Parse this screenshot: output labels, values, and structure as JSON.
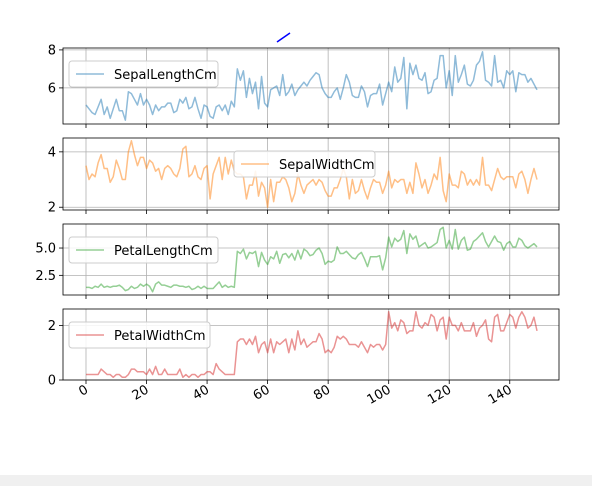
{
  "window": {
    "background": "#f0f0f0"
  },
  "chart_data": {
    "type": "line",
    "x_range": [
      0,
      149
    ],
    "x_ticks": [
      "0",
      "20",
      "40",
      "60",
      "80",
      "100",
      "120",
      "140"
    ],
    "grid": true,
    "alpha": 0.5,
    "series": [
      {
        "name": "SepalLengthCm",
        "color": "#1f77b4",
        "ylim": [
          4.1,
          8.1
        ],
        "y_ticks": [
          "6",
          "8"
        ],
        "legend_position": "upper left",
        "values": [
          5.1,
          4.9,
          4.7,
          4.6,
          5.0,
          5.4,
          4.6,
          5.0,
          4.4,
          4.9,
          5.4,
          4.8,
          4.8,
          4.3,
          5.8,
          5.7,
          5.4,
          5.1,
          5.7,
          5.1,
          5.4,
          5.1,
          4.6,
          5.1,
          4.8,
          5.0,
          5.0,
          5.2,
          5.2,
          4.7,
          4.8,
          5.4,
          5.2,
          5.5,
          4.9,
          5.0,
          5.5,
          4.9,
          4.4,
          5.1,
          5.0,
          4.5,
          4.4,
          5.0,
          5.1,
          4.8,
          5.1,
          4.6,
          5.3,
          5.0,
          7.0,
          6.4,
          6.9,
          5.5,
          6.5,
          5.7,
          6.3,
          4.9,
          6.6,
          5.2,
          5.0,
          5.9,
          6.0,
          6.1,
          5.6,
          6.7,
          5.6,
          5.8,
          6.2,
          5.6,
          5.9,
          6.1,
          6.3,
          6.1,
          6.4,
          6.6,
          6.8,
          6.7,
          6.0,
          5.7,
          5.5,
          5.5,
          5.8,
          6.0,
          5.4,
          6.0,
          6.7,
          6.3,
          5.6,
          5.5,
          5.5,
          6.1,
          5.8,
          5.0,
          5.6,
          5.7,
          5.7,
          6.2,
          5.1,
          5.7,
          6.3,
          5.8,
          7.1,
          6.3,
          6.5,
          7.6,
          4.9,
          7.3,
          6.7,
          7.2,
          6.5,
          6.4,
          6.8,
          5.7,
          5.8,
          6.4,
          6.5,
          7.7,
          7.7,
          6.0,
          6.9,
          5.6,
          7.7,
          6.3,
          6.7,
          7.2,
          6.2,
          6.1,
          6.4,
          7.2,
          7.4,
          7.9,
          6.4,
          6.3,
          6.1,
          7.7,
          6.3,
          6.4,
          6.0,
          6.9,
          6.7,
          6.9,
          5.8,
          6.8,
          6.7,
          6.7,
          6.3,
          6.5,
          6.2,
          5.9
        ]
      },
      {
        "name": "SepalWidthCm",
        "color": "#ff7f0e",
        "ylim": [
          1.9,
          4.5
        ],
        "y_ticks": [
          "2",
          "4"
        ],
        "legend_position": "upper center",
        "values": [
          3.5,
          3.0,
          3.2,
          3.1,
          3.6,
          3.9,
          3.4,
          3.4,
          2.9,
          3.1,
          3.7,
          3.4,
          3.0,
          3.0,
          4.0,
          4.4,
          3.9,
          3.5,
          3.8,
          3.8,
          3.4,
          3.7,
          3.6,
          3.3,
          3.4,
          3.0,
          3.4,
          3.5,
          3.4,
          3.2,
          3.1,
          3.4,
          4.1,
          4.2,
          3.1,
          3.2,
          3.5,
          3.1,
          3.0,
          3.4,
          3.5,
          2.3,
          3.2,
          3.5,
          3.8,
          3.0,
          3.8,
          3.2,
          3.7,
          3.3,
          3.2,
          3.2,
          3.1,
          2.3,
          2.8,
          2.8,
          3.3,
          2.4,
          2.9,
          2.7,
          2.0,
          3.0,
          2.2,
          2.9,
          2.9,
          3.1,
          3.0,
          2.7,
          2.2,
          2.5,
          3.2,
          2.8,
          2.5,
          2.8,
          2.9,
          3.0,
          2.8,
          3.0,
          2.9,
          2.6,
          2.4,
          2.4,
          2.7,
          2.7,
          3.0,
          3.4,
          3.1,
          2.3,
          3.0,
          2.5,
          2.6,
          3.0,
          2.6,
          2.3,
          2.7,
          3.0,
          2.9,
          2.9,
          2.5,
          2.8,
          3.3,
          2.7,
          3.0,
          2.9,
          3.0,
          3.0,
          2.5,
          2.9,
          2.5,
          3.6,
          3.2,
          2.7,
          3.0,
          2.5,
          2.8,
          3.2,
          3.0,
          3.8,
          2.6,
          2.2,
          3.2,
          2.8,
          2.8,
          2.7,
          3.3,
          3.2,
          2.8,
          3.0,
          2.8,
          3.0,
          2.8,
          3.8,
          2.8,
          2.8,
          2.6,
          3.0,
          3.4,
          3.1,
          3.0,
          3.1,
          3.1,
          3.1,
          2.7,
          3.2,
          3.3,
          3.0,
          2.5,
          3.0,
          3.4,
          3.0
        ]
      },
      {
        "name": "PetalLengthCm",
        "color": "#2ca02c",
        "ylim": [
          0.7,
          7.2
        ],
        "y_ticks": [
          "2.5",
          "5.0"
        ],
        "legend_position": "upper left",
        "values": [
          1.4,
          1.4,
          1.3,
          1.5,
          1.4,
          1.7,
          1.4,
          1.5,
          1.4,
          1.5,
          1.5,
          1.6,
          1.4,
          1.1,
          1.2,
          1.5,
          1.3,
          1.4,
          1.7,
          1.5,
          1.7,
          1.5,
          1.0,
          1.7,
          1.9,
          1.6,
          1.6,
          1.5,
          1.4,
          1.6,
          1.6,
          1.5,
          1.5,
          1.4,
          1.5,
          1.2,
          1.3,
          1.5,
          1.3,
          1.5,
          1.3,
          1.3,
          1.3,
          1.6,
          1.9,
          1.4,
          1.6,
          1.4,
          1.5,
          1.4,
          4.7,
          4.5,
          4.9,
          4.0,
          4.6,
          4.5,
          4.7,
          3.3,
          4.6,
          3.9,
          3.5,
          4.2,
          4.0,
          4.7,
          3.6,
          4.4,
          4.5,
          4.1,
          4.5,
          3.9,
          4.8,
          4.0,
          4.9,
          4.7,
          4.3,
          4.4,
          4.8,
          5.0,
          4.5,
          3.5,
          3.8,
          3.7,
          3.9,
          5.1,
          4.5,
          4.5,
          4.7,
          4.4,
          4.1,
          4.0,
          4.4,
          4.6,
          4.0,
          3.3,
          4.2,
          4.2,
          4.2,
          4.3,
          3.0,
          4.1,
          6.0,
          5.1,
          5.9,
          5.6,
          5.8,
          6.6,
          4.5,
          6.3,
          5.8,
          6.1,
          5.1,
          5.3,
          5.5,
          5.0,
          5.1,
          5.3,
          5.5,
          6.7,
          6.9,
          5.0,
          5.7,
          4.9,
          6.7,
          4.9,
          5.7,
          6.0,
          4.8,
          4.9,
          5.6,
          5.8,
          6.1,
          6.4,
          5.6,
          5.1,
          5.6,
          6.1,
          5.6,
          5.5,
          4.8,
          5.4,
          5.6,
          5.1,
          5.1,
          5.9,
          5.7,
          5.2,
          5.0,
          5.2,
          5.4,
          5.1
        ]
      },
      {
        "name": "PetalWidthCm",
        "color": "#d62728",
        "ylim": [
          0,
          2.6
        ],
        "y_ticks": [
          "0",
          "2"
        ],
        "legend_position": "upper left",
        "values": [
          0.2,
          0.2,
          0.2,
          0.2,
          0.2,
          0.4,
          0.3,
          0.2,
          0.2,
          0.1,
          0.2,
          0.2,
          0.1,
          0.1,
          0.2,
          0.4,
          0.4,
          0.3,
          0.3,
          0.3,
          0.2,
          0.4,
          0.2,
          0.5,
          0.2,
          0.2,
          0.4,
          0.2,
          0.2,
          0.2,
          0.2,
          0.4,
          0.1,
          0.2,
          0.1,
          0.2,
          0.2,
          0.1,
          0.2,
          0.2,
          0.3,
          0.3,
          0.2,
          0.6,
          0.4,
          0.3,
          0.2,
          0.2,
          0.2,
          0.2,
          1.4,
          1.5,
          1.5,
          1.3,
          1.5,
          1.3,
          1.6,
          1.0,
          1.3,
          1.4,
          1.0,
          1.5,
          1.0,
          1.4,
          1.3,
          1.4,
          1.5,
          1.0,
          1.5,
          1.1,
          1.8,
          1.3,
          1.5,
          1.2,
          1.3,
          1.4,
          1.4,
          1.7,
          1.5,
          1.0,
          1.1,
          1.0,
          1.2,
          1.6,
          1.5,
          1.6,
          1.5,
          1.3,
          1.3,
          1.3,
          1.2,
          1.4,
          1.2,
          1.0,
          1.3,
          1.2,
          1.3,
          1.3,
          1.1,
          1.3,
          2.5,
          1.9,
          2.1,
          1.8,
          2.2,
          2.1,
          1.7,
          1.8,
          1.8,
          2.5,
          2.0,
          1.9,
          2.1,
          2.0,
          2.4,
          2.3,
          1.8,
          2.2,
          2.3,
          1.5,
          2.3,
          2.0,
          2.0,
          1.8,
          2.1,
          1.8,
          1.8,
          1.8,
          2.1,
          1.6,
          1.9,
          2.0,
          2.2,
          1.5,
          1.4,
          2.3,
          2.4,
          1.8,
          1.8,
          2.1,
          2.4,
          2.3,
          1.9,
          2.3,
          2.5,
          2.3,
          1.9,
          2.0,
          2.3,
          1.8
        ]
      }
    ],
    "stray_mark_color": "#0000ff"
  }
}
